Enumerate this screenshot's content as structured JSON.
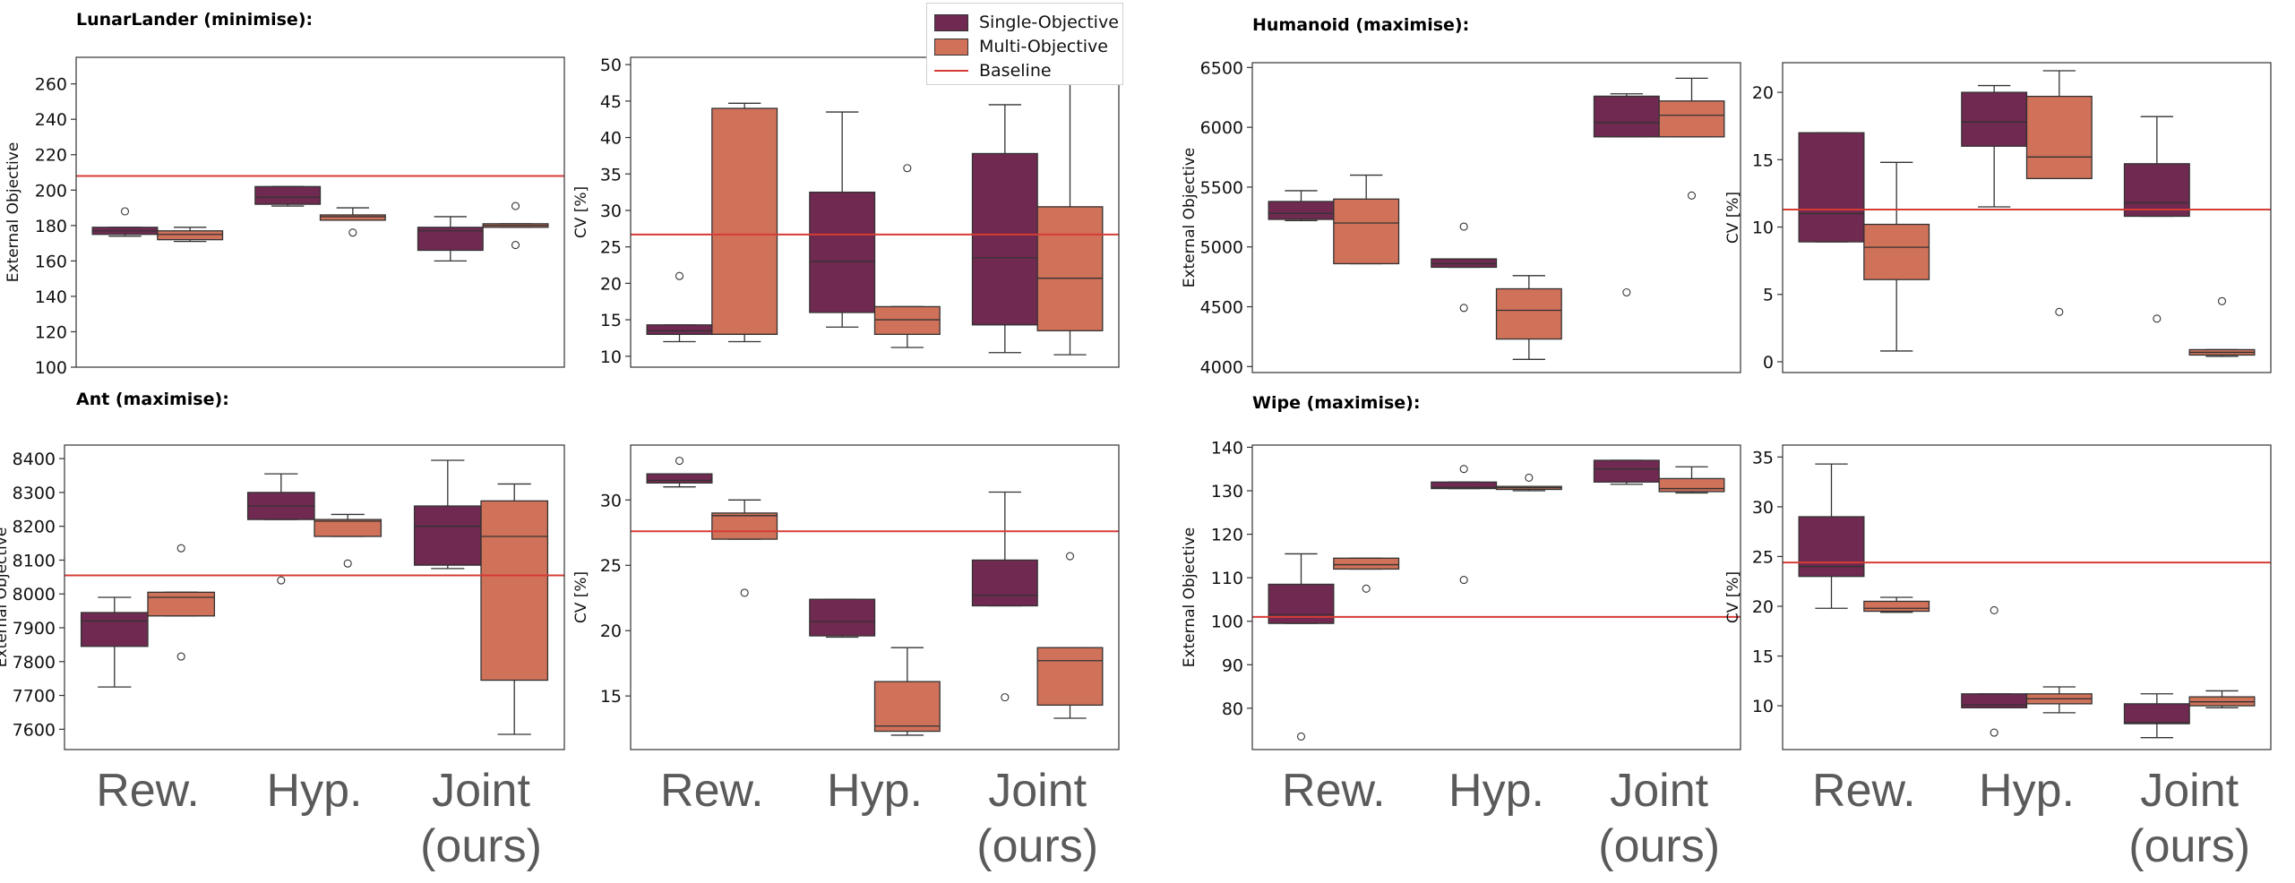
{
  "legend": {
    "single_label": "Single-Objective",
    "multi_label": "Multi-Objective",
    "baseline_label": "Baseline"
  },
  "colors": {
    "single": "#702950",
    "multi": "#d0715a",
    "baseline": "#d63c35",
    "axis": "#333333"
  },
  "category_labels_top": [
    "Rew.",
    "Hyp.",
    "Joint"
  ],
  "category_label_bottom_joint": "(ours)",
  "chart_data": [
    {
      "type": "box",
      "group_title": "LunarLander (minimise):",
      "ylabel": "External Objective",
      "categories": [
        "Rew.",
        "Hyp.",
        "Joint (ours)"
      ],
      "ylim": [
        100,
        275
      ],
      "yticks": [
        100,
        120,
        140,
        160,
        180,
        200,
        220,
        240,
        260
      ],
      "baseline": 208,
      "series": [
        {
          "name": "Single-Objective",
          "boxes": [
            {
              "whislo": 174,
              "q1": 175,
              "med": 177,
              "q3": 179,
              "whishi": 179,
              "fliers": [
                188
              ]
            },
            {
              "whislo": 191,
              "q1": 192,
              "med": 196,
              "q3": 202,
              "whishi": 202,
              "fliers": []
            },
            {
              "whislo": 160,
              "q1": 166,
              "med": 177,
              "q3": 179,
              "whishi": 185,
              "fliers": []
            }
          ]
        },
        {
          "name": "Multi-Objective",
          "boxes": [
            {
              "whislo": 171,
              "q1": 172,
              "med": 175,
              "q3": 177,
              "whishi": 179,
              "fliers": []
            },
            {
              "whislo": 183,
              "q1": 183,
              "med": 185,
              "q3": 186,
              "whishi": 190,
              "fliers": [
                176
              ]
            },
            {
              "whislo": 179,
              "q1": 179,
              "med": 180,
              "q3": 181,
              "whishi": 181,
              "fliers": [
                191,
                169
              ]
            }
          ]
        }
      ]
    },
    {
      "type": "box",
      "ylabel": "CV [%]",
      "categories": [
        "Rew.",
        "Hyp.",
        "Joint (ours)"
      ],
      "ylim": [
        8.5,
        51
      ],
      "yticks": [
        10,
        15,
        20,
        25,
        30,
        35,
        40,
        45,
        50
      ],
      "baseline": 26.7,
      "series": [
        {
          "name": "Single-Objective",
          "boxes": [
            {
              "whislo": 12,
              "q1": 13,
              "med": 13.5,
              "q3": 14.3,
              "whishi": 14.3,
              "fliers": [
                21
              ]
            },
            {
              "whislo": 14,
              "q1": 16,
              "med": 23,
              "q3": 32.5,
              "whishi": 43.5,
              "fliers": []
            },
            {
              "whislo": 10.5,
              "q1": 14.3,
              "med": 23.5,
              "q3": 37.8,
              "whishi": 44.5,
              "fliers": []
            }
          ]
        },
        {
          "name": "Multi-Objective",
          "boxes": [
            {
              "whislo": 12,
              "q1": 13,
              "med": 13,
              "q3": 44,
              "whishi": 44.7,
              "fliers": []
            },
            {
              "whislo": 11.2,
              "q1": 13,
              "med": 15,
              "q3": 16.8,
              "whishi": 16.8,
              "fliers": [
                35.8
              ]
            },
            {
              "whislo": 10.2,
              "q1": 13.5,
              "med": 20.7,
              "q3": 30.5,
              "whishi": 49,
              "fliers": []
            }
          ]
        }
      ]
    },
    {
      "type": "box",
      "group_title": "Humanoid (maximise):",
      "ylabel": "External Objective",
      "categories": [
        "Rew.",
        "Hyp.",
        "Joint (ours)"
      ],
      "ylim": [
        3950,
        6540
      ],
      "yticks": [
        4000,
        4500,
        5000,
        5500,
        6000,
        6500
      ],
      "series": [
        {
          "name": "Single-Objective",
          "boxes": [
            {
              "whislo": 5220,
              "q1": 5230,
              "med": 5280,
              "q3": 5380,
              "whishi": 5470,
              "fliers": []
            },
            {
              "whislo": 4830,
              "q1": 4830,
              "med": 4860,
              "q3": 4900,
              "whishi": 4900,
              "fliers": [
                5170,
                4490
              ]
            },
            {
              "whislo": 5920,
              "q1": 5920,
              "med": 6040,
              "q3": 6260,
              "whishi": 6280,
              "fliers": [
                4620
              ]
            }
          ]
        },
        {
          "name": "Multi-Objective",
          "boxes": [
            {
              "whislo": 4860,
              "q1": 4860,
              "med": 5200,
              "q3": 5400,
              "whishi": 5600,
              "fliers": []
            },
            {
              "whislo": 4060,
              "q1": 4230,
              "med": 4470,
              "q3": 4650,
              "whishi": 4760,
              "fliers": []
            },
            {
              "whislo": 5920,
              "q1": 5920,
              "med": 6100,
              "q3": 6220,
              "whishi": 6410,
              "fliers": [
                5430
              ]
            }
          ]
        }
      ]
    },
    {
      "type": "box",
      "ylabel": "CV [%]",
      "categories": [
        "Rew.",
        "Hyp.",
        "Joint (ours)"
      ],
      "ylim": [
        -0.8,
        22.2
      ],
      "yticks": [
        0,
        5,
        10,
        15,
        20
      ],
      "baseline": 11.3,
      "series": [
        {
          "name": "Single-Objective",
          "boxes": [
            {
              "whislo": 8.9,
              "q1": 8.9,
              "med": 11,
              "q3": 17,
              "whishi": 17,
              "fliers": []
            },
            {
              "whislo": 11.5,
              "q1": 16,
              "med": 17.8,
              "q3": 20,
              "whishi": 20.5,
              "fliers": []
            },
            {
              "whislo": 10.8,
              "q1": 10.8,
              "med": 11.8,
              "q3": 14.7,
              "whishi": 18.2,
              "fliers": [
                3.2
              ]
            }
          ]
        },
        {
          "name": "Multi-Objective",
          "boxes": [
            {
              "whislo": 0.8,
              "q1": 6.1,
              "med": 8.5,
              "q3": 10.2,
              "whishi": 14.8,
              "fliers": []
            },
            {
              "whislo": 13.6,
              "q1": 13.6,
              "med": 15.2,
              "q3": 19.7,
              "whishi": 21.6,
              "fliers": [
                3.7
              ]
            },
            {
              "whislo": 0.4,
              "q1": 0.5,
              "med": 0.7,
              "q3": 0.9,
              "whishi": 0.9,
              "fliers": [
                4.5
              ]
            }
          ]
        }
      ]
    },
    {
      "type": "box",
      "group_title": "Ant (maximise):",
      "ylabel": "External Objective",
      "categories": [
        "Rew.",
        "Hyp.",
        "Joint (ours)"
      ],
      "ylim": [
        7540,
        8440
      ],
      "yticks": [
        7600,
        7700,
        7800,
        7900,
        8000,
        8100,
        8200,
        8300,
        8400
      ],
      "baseline": 8055,
      "series": [
        {
          "name": "Single-Objective",
          "boxes": [
            {
              "whislo": 7725,
              "q1": 7845,
              "med": 7920,
              "q3": 7945,
              "whishi": 7990,
              "fliers": []
            },
            {
              "whislo": 8220,
              "q1": 8220,
              "med": 8260,
              "q3": 8300,
              "whishi": 8355,
              "fliers": [
                8040
              ]
            },
            {
              "whislo": 8075,
              "q1": 8085,
              "med": 8200,
              "q3": 8260,
              "whishi": 8395,
              "fliers": []
            }
          ]
        },
        {
          "name": "Multi-Objective",
          "boxes": [
            {
              "whislo": 7935,
              "q1": 7935,
              "med": 7990,
              "q3": 8005,
              "whishi": 8005,
              "fliers": [
                8135,
                7815
              ]
            },
            {
              "whislo": 8170,
              "q1": 8170,
              "med": 8215,
              "q3": 8220,
              "whishi": 8235,
              "fliers": [
                8090
              ]
            },
            {
              "whislo": 7585,
              "q1": 7745,
              "med": 8170,
              "q3": 8275,
              "whishi": 8325,
              "fliers": []
            }
          ]
        }
      ]
    },
    {
      "type": "box",
      "ylabel": "CV [%]",
      "categories": [
        "Rew.",
        "Hyp.",
        "Joint (ours)"
      ],
      "ylim": [
        10.9,
        34.2
      ],
      "yticks": [
        15,
        20,
        25,
        30
      ],
      "baseline": 27.6,
      "series": [
        {
          "name": "Single-Objective",
          "boxes": [
            {
              "whislo": 31,
              "q1": 31.3,
              "med": 31.5,
              "q3": 32,
              "whishi": 32,
              "fliers": [
                33
              ]
            },
            {
              "whislo": 19.5,
              "q1": 19.6,
              "med": 20.7,
              "q3": 22.4,
              "whishi": 22.4,
              "fliers": []
            },
            {
              "whislo": 21.9,
              "q1": 21.9,
              "med": 22.7,
              "q3": 25.4,
              "whishi": 30.6,
              "fliers": [
                14.9
              ]
            }
          ]
        },
        {
          "name": "Multi-Objective",
          "boxes": [
            {
              "whislo": 27,
              "q1": 27,
              "med": 28.8,
              "q3": 29,
              "whishi": 30,
              "fliers": [
                22.9
              ]
            },
            {
              "whislo": 12,
              "q1": 12.3,
              "med": 12.7,
              "q3": 16.1,
              "whishi": 18.7,
              "fliers": []
            },
            {
              "whislo": 13.3,
              "q1": 14.3,
              "med": 17.7,
              "q3": 18.7,
              "whishi": 18.7,
              "fliers": [
                25.7
              ]
            }
          ]
        }
      ]
    },
    {
      "type": "box",
      "group_title": "Wipe (maximise):",
      "ylabel": "External Objective",
      "categories": [
        "Rew.",
        "Hyp.",
        "Joint (ours)"
      ],
      "ylim": [
        70.5,
        140.5
      ],
      "yticks": [
        80,
        90,
        100,
        110,
        120,
        130,
        140
      ],
      "baseline": 101,
      "series": [
        {
          "name": "Single-Objective",
          "boxes": [
            {
              "whislo": 99.5,
              "q1": 99.5,
              "med": 101.5,
              "q3": 108.5,
              "whishi": 115.5,
              "fliers": [
                73.5
              ]
            },
            {
              "whislo": 130.5,
              "q1": 130.5,
              "med": 130.8,
              "q3": 132,
              "whishi": 132,
              "fliers": [
                135,
                109.5
              ]
            },
            {
              "whislo": 131.5,
              "q1": 132,
              "med": 135,
              "q3": 137,
              "whishi": 137,
              "fliers": []
            }
          ]
        },
        {
          "name": "Multi-Objective",
          "boxes": [
            {
              "whislo": 112,
              "q1": 112,
              "med": 113,
              "q3": 114.5,
              "whishi": 114.5,
              "fliers": [
                107.5
              ]
            },
            {
              "whislo": 130,
              "q1": 130.3,
              "med": 130.7,
              "q3": 131,
              "whishi": 131,
              "fliers": [
                133
              ]
            },
            {
              "whislo": 129.5,
              "q1": 129.8,
              "med": 130.5,
              "q3": 132.8,
              "whishi": 135.5,
              "fliers": []
            }
          ]
        }
      ]
    },
    {
      "type": "box",
      "ylabel": "CV [%]",
      "categories": [
        "Rew.",
        "Hyp.",
        "Joint (ours)"
      ],
      "ylim": [
        5.6,
        36.2
      ],
      "yticks": [
        10,
        15,
        20,
        25,
        30,
        35
      ],
      "baseline": 24.4,
      "series": [
        {
          "name": "Single-Objective",
          "boxes": [
            {
              "whislo": 19.8,
              "q1": 23,
              "med": 24,
              "q3": 29,
              "whishi": 34.3,
              "fliers": []
            },
            {
              "whislo": 9.8,
              "q1": 9.8,
              "med": 10.1,
              "q3": 11.2,
              "whishi": 11.2,
              "fliers": [
                19.6,
                7.3
              ]
            },
            {
              "whislo": 6.8,
              "q1": 8.2,
              "med": 8.3,
              "q3": 10.2,
              "whishi": 11.2,
              "fliers": []
            }
          ]
        },
        {
          "name": "Multi-Objective",
          "boxes": [
            {
              "whislo": 19.4,
              "q1": 19.5,
              "med": 19.8,
              "q3": 20.5,
              "whishi": 20.9,
              "fliers": []
            },
            {
              "whislo": 9.3,
              "q1": 10.2,
              "med": 10.7,
              "q3": 11.2,
              "whishi": 11.9,
              "fliers": []
            },
            {
              "whislo": 9.8,
              "q1": 10,
              "med": 10.4,
              "q3": 10.9,
              "whishi": 11.5,
              "fliers": []
            }
          ]
        }
      ]
    }
  ]
}
